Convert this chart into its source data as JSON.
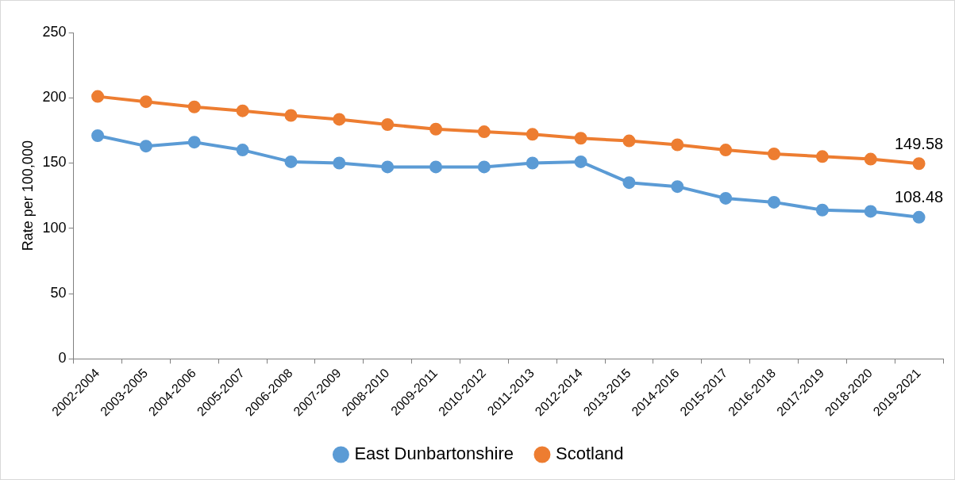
{
  "chart_data": {
    "type": "line",
    "ylabel": "Rate per 100,000",
    "categories": [
      "2002-2004",
      "2003-2005",
      "2004-2006",
      "2005-2007",
      "2006-2008",
      "2007-2009",
      "2008-2010",
      "2009-2011",
      "2010-2012",
      "2011-2013",
      "2012-2014",
      "2013-2015",
      "2014-2016",
      "2015-2017",
      "2016-2018",
      "2017-2019",
      "2018-2020",
      "2019-2021"
    ],
    "series": [
      {
        "name": "East Dunbartonshire",
        "color": "#5b9bd5",
        "values": [
          171,
          163,
          166,
          160,
          151,
          150,
          147,
          147,
          147,
          150,
          151,
          135,
          132,
          123,
          120,
          114,
          113,
          108.48
        ],
        "value_labels": [
          null,
          null,
          null,
          null,
          null,
          null,
          null,
          null,
          null,
          null,
          null,
          null,
          null,
          null,
          null,
          null,
          null,
          "108.48"
        ]
      },
      {
        "name": "Scotland",
        "color": "#ed7d31",
        "values": [
          201,
          197,
          193,
          190,
          186.5,
          183.5,
          179.5,
          176,
          174,
          172,
          169,
          167,
          164,
          160,
          157,
          155,
          153,
          149.58
        ],
        "value_labels": [
          null,
          null,
          null,
          null,
          null,
          null,
          null,
          null,
          null,
          null,
          null,
          null,
          null,
          null,
          null,
          null,
          null,
          "149.58"
        ]
      }
    ],
    "ylim": [
      0,
      250
    ],
    "yticks": [
      0,
      50,
      100,
      150,
      200,
      250
    ],
    "grid": false,
    "legend": "bottom",
    "marker": "circle",
    "line_style": "solid"
  }
}
